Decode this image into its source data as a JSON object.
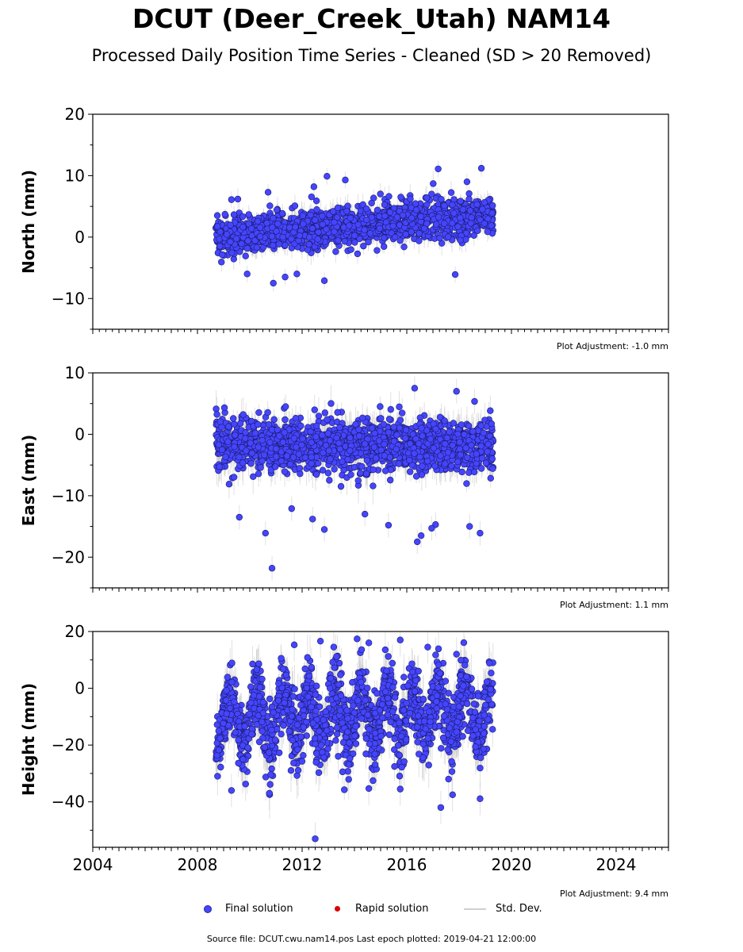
{
  "title": "DCUT (Deer_Creek_Utah) NAM14",
  "subtitle": "Processed Daily Position Time Series - Cleaned (SD > 20 Removed)",
  "legend": {
    "final": "Final solution",
    "rapid": "Rapid solution",
    "std": "Std. Dev."
  },
  "footer": "Source file: DCUT.cwu.nam14.pos  Last epoch plotted: 2019-04-21 12:00:00",
  "colors": {
    "final_fill": "#4545ff",
    "final_edge": "#1a1a66",
    "rapid": "#dd0000",
    "std_dev": "#c8c8c8"
  },
  "chart_data": [
    {
      "type": "scatter",
      "ylabel": "North (mm)",
      "ylim": [
        -15,
        20
      ],
      "yticks": [
        20,
        10,
        0,
        -10
      ],
      "ytick_labels": [
        "20",
        "10",
        "0",
        "−10"
      ],
      "xlim": [
        2004,
        2026
      ],
      "adjustment": "Plot Adjustment: -1.0 mm",
      "data_range": [
        2008.7,
        2019.3
      ],
      "trend": {
        "start": 0.0,
        "end": 3.8
      },
      "scatter_sd": 1.5,
      "outliers": [
        {
          "x": 2012.95,
          "y": 9.9
        },
        {
          "x": 2013.65,
          "y": 9.3
        },
        {
          "x": 2012.45,
          "y": 8.2
        },
        {
          "x": 2017.2,
          "y": 11.1
        },
        {
          "x": 2018.85,
          "y": 11.2
        },
        {
          "x": 2018.3,
          "y": 9.0
        },
        {
          "x": 2010.9,
          "y": -7.5
        },
        {
          "x": 2011.35,
          "y": -6.5
        },
        {
          "x": 2012.85,
          "y": -7.1
        },
        {
          "x": 2009.9,
          "y": -6.0
        },
        {
          "x": 2011.8,
          "y": -6.0
        },
        {
          "x": 2017.85,
          "y": -6.1
        },
        {
          "x": 2009.3,
          "y": 6.1
        },
        {
          "x": 2010.7,
          "y": 7.3
        }
      ]
    },
    {
      "type": "scatter",
      "ylabel": "East (mm)",
      "ylim": [
        -25,
        10
      ],
      "yticks": [
        10,
        0,
        -10,
        -20
      ],
      "ytick_labels": [
        "10",
        "0",
        "−10",
        "−20"
      ],
      "xlim": [
        2004,
        2026
      ],
      "adjustment": "Plot Adjustment: 1.1 mm",
      "data_range": [
        2008.7,
        2019.3
      ],
      "trend": {
        "start": -1.8,
        "end": -1.8
      },
      "scatter_sd": 2.2,
      "outliers": [
        {
          "x": 2016.3,
          "y": 7.5
        },
        {
          "x": 2017.9,
          "y": 7.0
        },
        {
          "x": 2010.85,
          "y": -21.8
        },
        {
          "x": 2010.6,
          "y": -16.1
        },
        {
          "x": 2012.85,
          "y": -15.5
        },
        {
          "x": 2016.4,
          "y": -17.5
        },
        {
          "x": 2016.55,
          "y": -16.5
        },
        {
          "x": 2018.8,
          "y": -16.1
        },
        {
          "x": 2009.6,
          "y": -13.5
        },
        {
          "x": 2014.4,
          "y": -13.0
        },
        {
          "x": 2015.3,
          "y": -14.8
        },
        {
          "x": 2018.4,
          "y": -15.0
        },
        {
          "x": 2012.4,
          "y": -13.8
        },
        {
          "x": 2017.1,
          "y": -14.7
        },
        {
          "x": 2011.6,
          "y": -12.1
        },
        {
          "x": 2016.95,
          "y": -15.3
        }
      ]
    },
    {
      "type": "scatter",
      "ylabel": "Height (mm)",
      "ylim": [
        -56,
        20
      ],
      "yticks": [
        20,
        0,
        -20,
        -40
      ],
      "ytick_labels": [
        "20",
        "0",
        "−20",
        "−40"
      ],
      "xlim": [
        2004,
        2026
      ],
      "xticks": [
        2004,
        2008,
        2012,
        2016,
        2020,
        2024
      ],
      "xtick_labels": [
        "2004",
        "2008",
        "2012",
        "2016",
        "2020",
        "2024"
      ],
      "adjustment": "Plot Adjustment: 9.4 mm",
      "data_range": [
        2008.7,
        2019.3
      ],
      "trend": {
        "start": -11.0,
        "end": -8.0
      },
      "seasonal_amplitude": 8.0,
      "scatter_sd": 6.5,
      "outliers": [
        {
          "x": 2012.5,
          "y": -53.0
        },
        {
          "x": 2017.3,
          "y": -42.0
        },
        {
          "x": 2011.7,
          "y": 15.3
        },
        {
          "x": 2012.7,
          "y": 16.6
        },
        {
          "x": 2014.1,
          "y": 17.4
        },
        {
          "x": 2014.55,
          "y": 16.0
        },
        {
          "x": 2015.75,
          "y": 17.0
        },
        {
          "x": 2016.8,
          "y": 14.5
        },
        {
          "x": 2017.9,
          "y": 12.0
        },
        {
          "x": 2009.3,
          "y": -36.0
        },
        {
          "x": 2010.75,
          "y": -37.0
        },
        {
          "x": 2014.55,
          "y": -35.3
        },
        {
          "x": 2015.75,
          "y": -35.5
        },
        {
          "x": 2017.75,
          "y": -37.5
        },
        {
          "x": 2018.8,
          "y": -38.9
        }
      ]
    }
  ]
}
